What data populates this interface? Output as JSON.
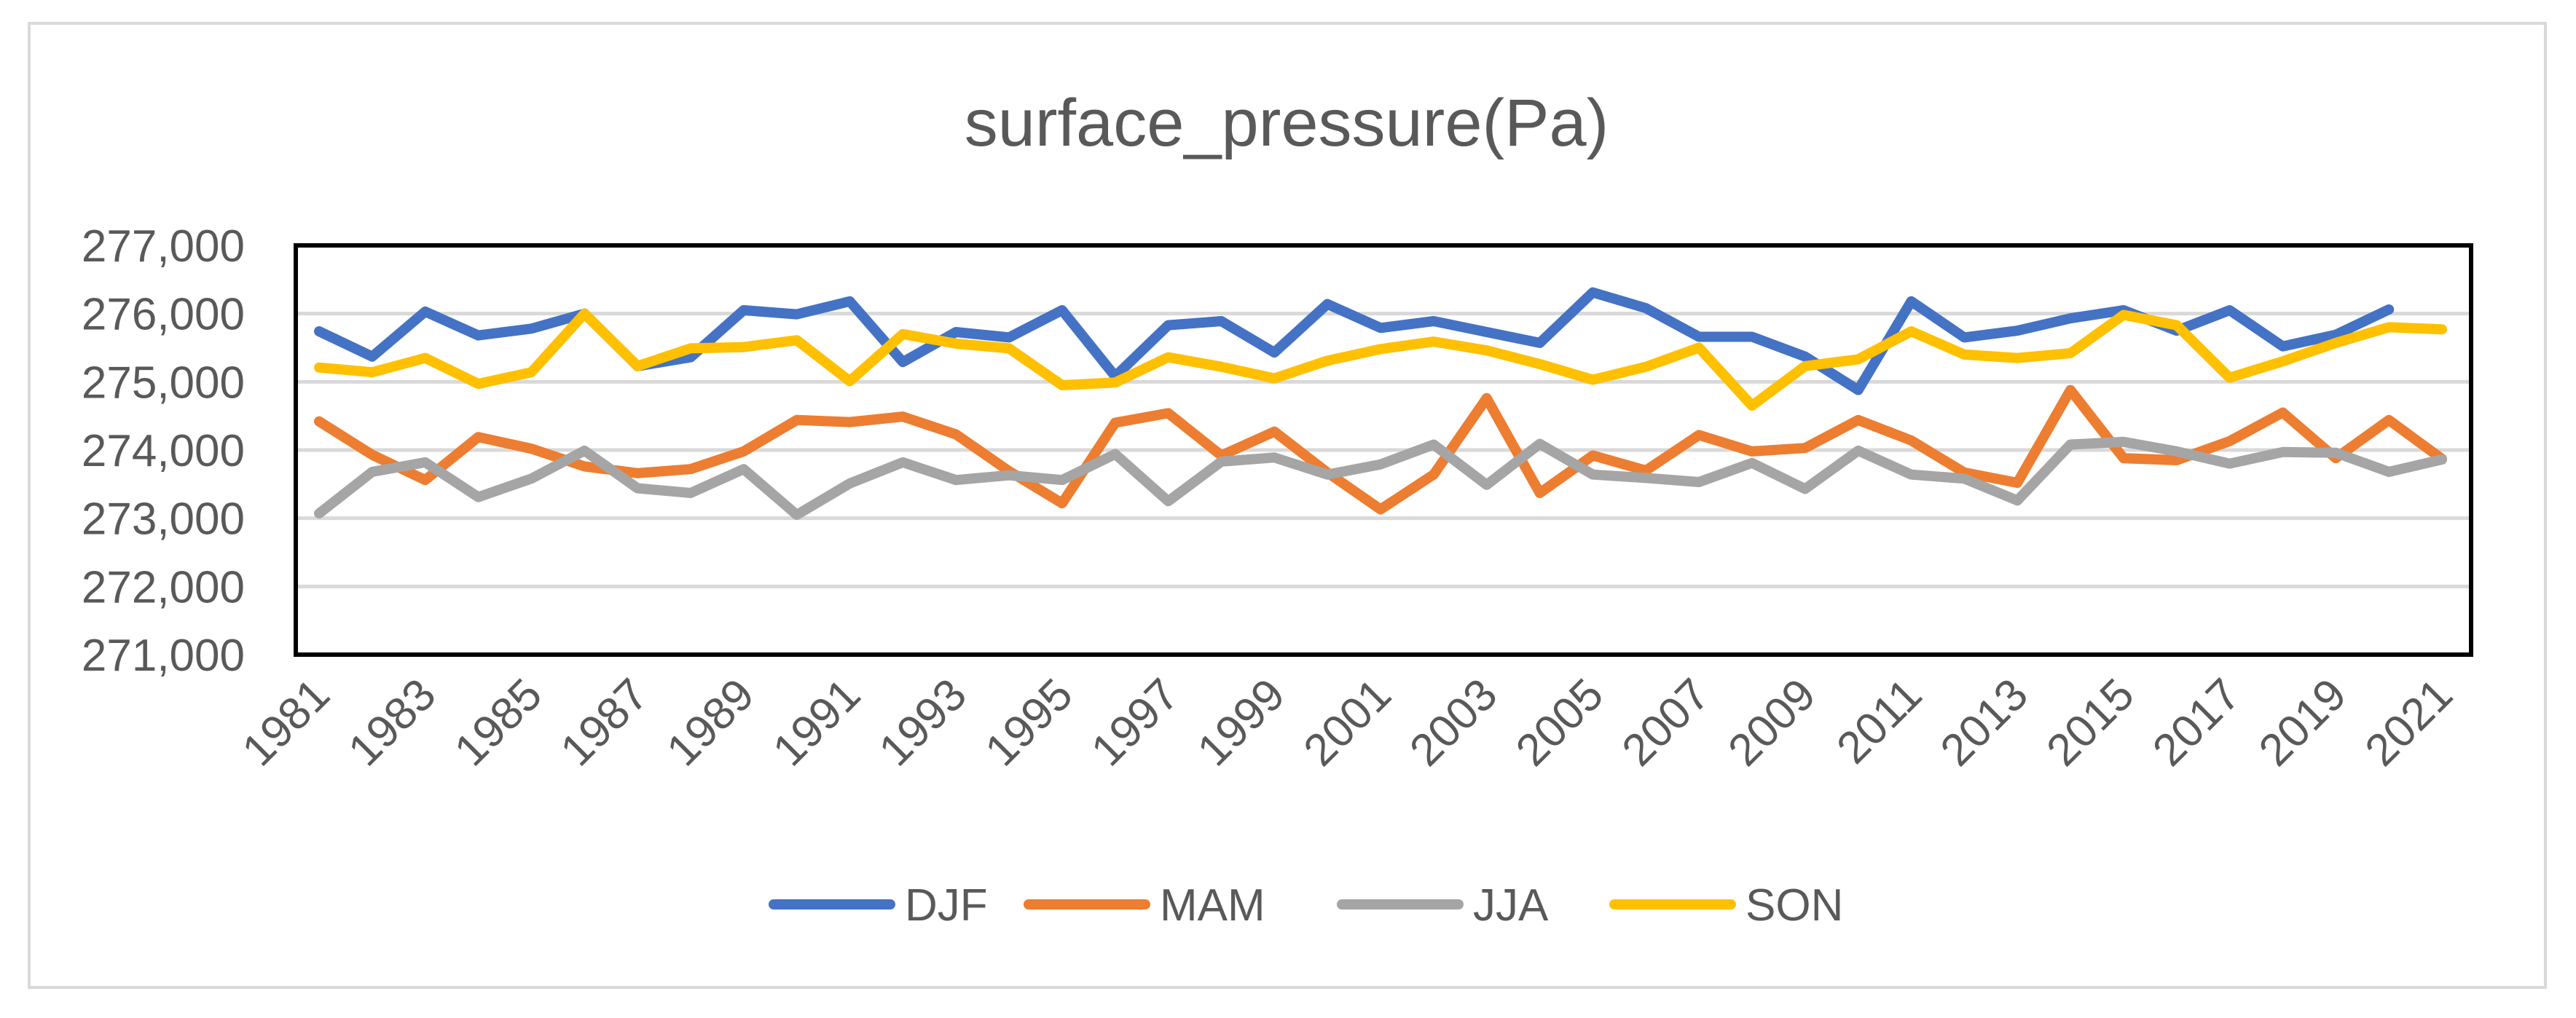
{
  "chart_data": {
    "type": "line",
    "title": "surface_pressure(Pa)",
    "xlabel": "",
    "ylabel": "",
    "ylim": [
      271000,
      277000
    ],
    "yticks": [
      271000,
      272000,
      273000,
      274000,
      275000,
      276000,
      277000
    ],
    "ytick_labels": [
      "271,000",
      "272,000",
      "273,000",
      "274,000",
      "275,000",
      "276,000",
      "277,000"
    ],
    "xlim": [
      1981,
      2021
    ],
    "xticks": [
      1981,
      1983,
      1985,
      1987,
      1989,
      1991,
      1993,
      1995,
      1997,
      1999,
      2001,
      2003,
      2005,
      2007,
      2009,
      2011,
      2013,
      2015,
      2017,
      2019,
      2021
    ],
    "xtick_labels": [
      "1981",
      "1983",
      "1985",
      "1987",
      "1989",
      "1991",
      "1993",
      "1995",
      "1997",
      "1999",
      "2001",
      "2003",
      "2005",
      "2007",
      "2009",
      "2011",
      "2013",
      "2015",
      "2017",
      "2019",
      "2021"
    ],
    "grid": true,
    "legend_position": "bottom",
    "x": [
      1981,
      1982,
      1983,
      1984,
      1985,
      1986,
      1987,
      1988,
      1989,
      1990,
      1991,
      1992,
      1993,
      1994,
      1995,
      1996,
      1997,
      1998,
      1999,
      2000,
      2001,
      2002,
      2003,
      2004,
      2005,
      2006,
      2007,
      2008,
      2009,
      2010,
      2011,
      2012,
      2013,
      2014,
      2015,
      2016,
      2017,
      2018,
      2019,
      2020,
      2021
    ],
    "series": [
      {
        "name": "DJF",
        "color": "#4472c4",
        "values": [
          275740,
          275370,
          276030,
          275680,
          275780,
          276000,
          275230,
          275360,
          276050,
          275990,
          276180,
          275290,
          275730,
          275650,
          276050,
          275080,
          275830,
          275890,
          275430,
          276140,
          275790,
          275890,
          275730,
          275570,
          276310,
          276080,
          275660,
          275660,
          275370,
          274880,
          276180,
          275650,
          275750,
          275930,
          276050,
          275750,
          276050,
          275520,
          275690,
          276060,
          null
        ]
      },
      {
        "name": "MAM",
        "color": "#ed7d31",
        "values": [
          274420,
          273930,
          273560,
          274190,
          274020,
          273760,
          273660,
          273720,
          273980,
          274440,
          274410,
          274490,
          274230,
          273690,
          273220,
          274400,
          274540,
          273920,
          274270,
          273670,
          273130,
          273640,
          274760,
          273370,
          273920,
          273700,
          274220,
          273980,
          274030,
          274440,
          274140,
          273670,
          273520,
          274880,
          273880,
          273850,
          274130,
          274550,
          273880,
          274440,
          273870
        ]
      },
      {
        "name": "JJA",
        "color": "#a5a5a5",
        "values": [
          273070,
          273680,
          273820,
          273310,
          273580,
          273990,
          273440,
          273370,
          273720,
          273050,
          273510,
          273820,
          273560,
          273630,
          273560,
          273940,
          273250,
          273830,
          273890,
          273640,
          273790,
          274080,
          273490,
          274090,
          273640,
          273590,
          273530,
          273810,
          273430,
          273990,
          273640,
          273580,
          273260,
          274080,
          274120,
          273980,
          273800,
          273970,
          273960,
          273680,
          273860
        ]
      },
      {
        "name": "SON",
        "color": "#ffc000",
        "values": [
          275210,
          275140,
          275350,
          274970,
          275140,
          276000,
          275230,
          275490,
          275510,
          275610,
          275010,
          275700,
          275560,
          275490,
          274950,
          274990,
          275360,
          275220,
          275050,
          275310,
          275480,
          275590,
          275460,
          275260,
          275030,
          275220,
          275500,
          274650,
          275230,
          275330,
          275740,
          275400,
          275350,
          275420,
          275980,
          275830,
          275060,
          275300,
          275570,
          275800,
          275770
        ]
      }
    ]
  }
}
